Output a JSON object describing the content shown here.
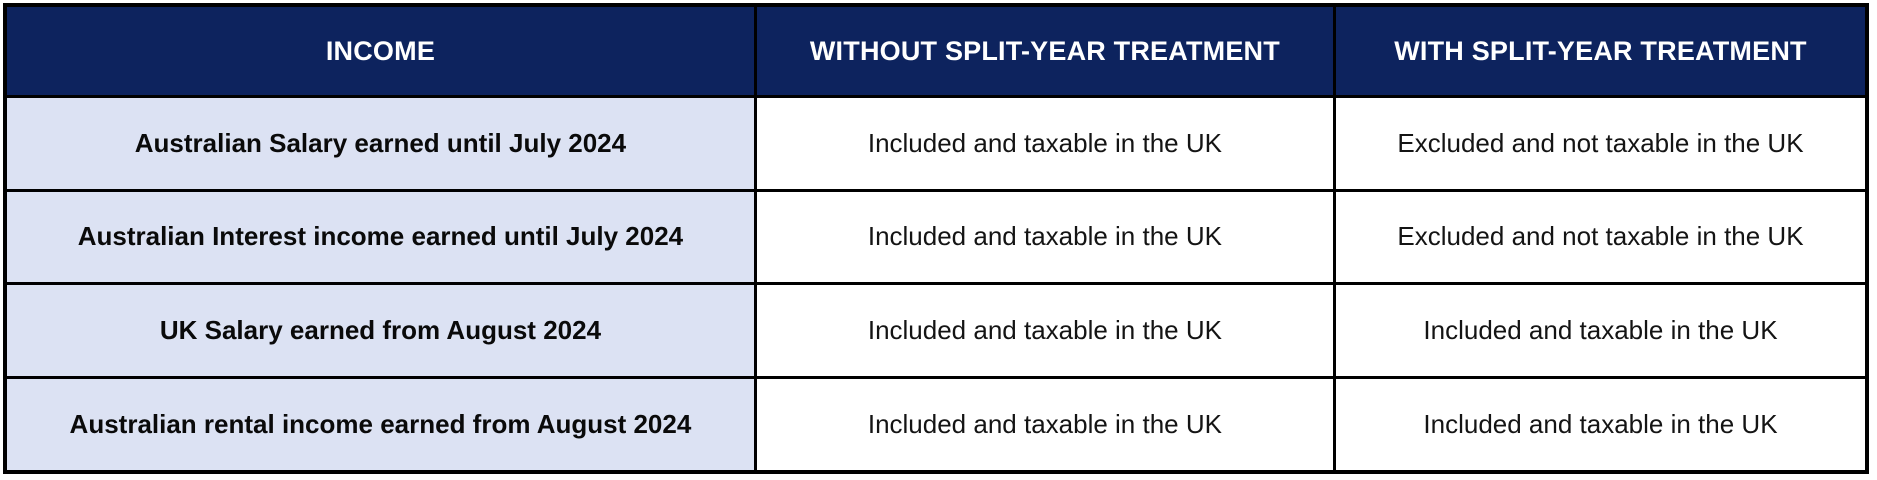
{
  "table": {
    "headers": [
      {
        "label": "INCOME"
      },
      {
        "label": "WITHOUT SPLIT-YEAR TREATMENT"
      },
      {
        "label": "WITH SPLIT-YEAR TREATMENT"
      }
    ],
    "rows": [
      {
        "income": "Australian Salary earned until July 2024",
        "without_split": "Included and taxable in the UK",
        "with_split": "Excluded and not taxable in the UK"
      },
      {
        "income": "Australian Interest income earned until July 2024",
        "without_split": "Included and taxable in the UK",
        "with_split": "Excluded and not taxable in the UK"
      },
      {
        "income": "UK Salary earned from August 2024",
        "without_split": "Included and taxable in the UK",
        "with_split": "Included and taxable in the UK"
      },
      {
        "income": "Australian rental income earned from August 2024",
        "without_split": "Included and taxable in the UK",
        "with_split": "Included and taxable in the UK"
      }
    ],
    "colors": {
      "header_bg": "#0d235e",
      "header_text": "#ffffff",
      "income_column_bg": "#dce2f3",
      "value_cell_bg": "#ffffff",
      "border": "#000000",
      "body_text": "#141414"
    }
  }
}
